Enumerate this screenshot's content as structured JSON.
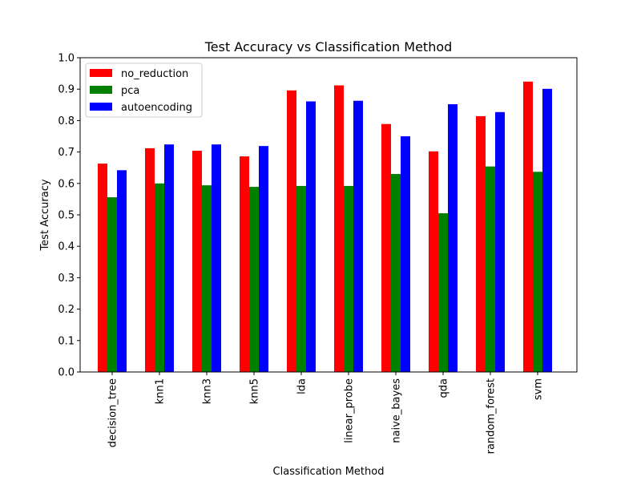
{
  "chart_data": {
    "type": "bar",
    "title": "Test Accuracy vs Classification Method",
    "xlabel": "Classification Method",
    "ylabel": "Test Accuracy",
    "ylim": [
      0,
      1.0
    ],
    "yticks": [
      "0.0",
      "0.1",
      "0.2",
      "0.3",
      "0.4",
      "0.5",
      "0.6",
      "0.7",
      "0.8",
      "0.9",
      "1.0"
    ],
    "categories": [
      "decision_tree",
      "knn1",
      "knn3",
      "knn5",
      "lda",
      "linear_probe",
      "naive_bayes",
      "qda",
      "random_forest",
      "svm"
    ],
    "series": [
      {
        "name": "no_reduction",
        "color": "#ff0000",
        "values": [
          0.663,
          0.712,
          0.704,
          0.686,
          0.896,
          0.912,
          0.789,
          0.702,
          0.814,
          0.924
        ]
      },
      {
        "name": "pca",
        "color": "#008000",
        "values": [
          0.556,
          0.6,
          0.594,
          0.589,
          0.592,
          0.592,
          0.63,
          0.505,
          0.654,
          0.637
        ]
      },
      {
        "name": "autoencoding",
        "color": "#0000ff",
        "values": [
          0.642,
          0.724,
          0.724,
          0.719,
          0.861,
          0.863,
          0.75,
          0.852,
          0.827,
          0.901
        ]
      }
    ],
    "grid": false,
    "legend_position": "top-left"
  }
}
